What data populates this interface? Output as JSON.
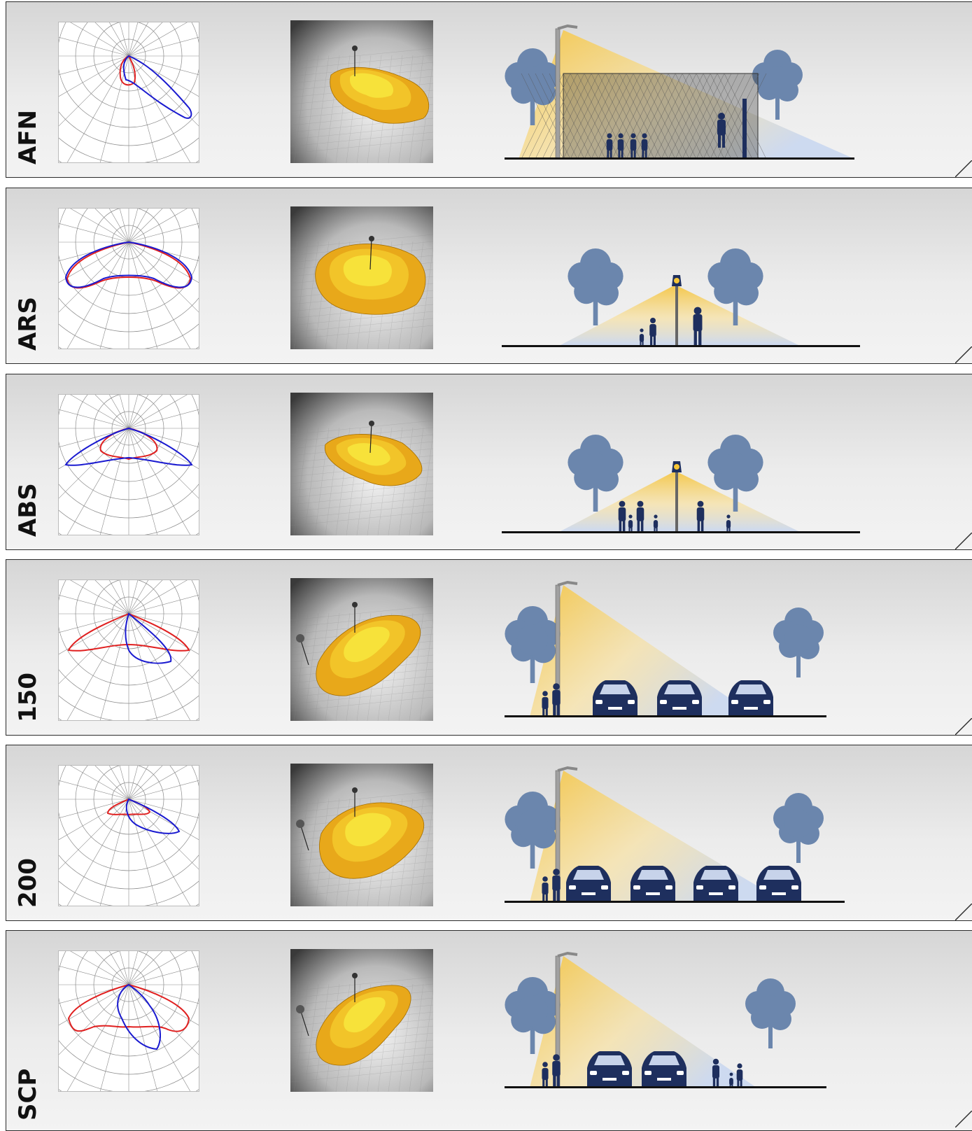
{
  "rows": [
    {
      "code": "AFN",
      "polar_variant": "afn",
      "scene": "court"
    },
    {
      "code": "ARS",
      "polar_variant": "ars",
      "scene": "park-sym"
    },
    {
      "code": "ABS",
      "polar_variant": "abs",
      "scene": "park-sym2"
    },
    {
      "code": "150",
      "polar_variant": "150",
      "scene": "road-3cars"
    },
    {
      "code": "200",
      "polar_variant": "200",
      "scene": "road-4cars"
    },
    {
      "code": "SCP",
      "polar_variant": "scp",
      "scene": "road-bikes"
    }
  ],
  "colors": {
    "curve_red": "#e02020",
    "curve_blue": "#1a1ad0",
    "light_yellow": "#f5c542",
    "light_blue": "#c9d7f0",
    "tree": "#6b86ad",
    "figure": "#1e2f5e",
    "isolux_outer": "#e8a81a",
    "isolux_inner": "#f7e23a"
  }
}
